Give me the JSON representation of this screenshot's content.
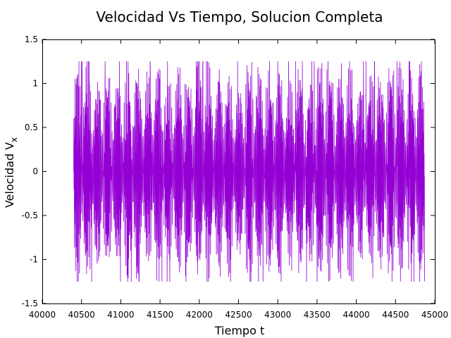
{
  "chart_data": {
    "type": "line",
    "title": "Velocidad Vs Tiempo, Solucion Completa",
    "xlabel": "Tiempo t",
    "ylabel_main": "Velocidad V",
    "ylabel_sub": "x",
    "xlim": [
      40000,
      45000
    ],
    "ylim": [
      -1.5,
      1.5
    ],
    "xticks": [
      "40000",
      "40500",
      "41000",
      "41500",
      "42000",
      "42500",
      "43000",
      "43500",
      "44000",
      "44500",
      "45000"
    ],
    "yticks": [
      "-1.5",
      "-1",
      "-0.5",
      "0",
      "0.5",
      "1",
      "1.5"
    ],
    "x_range": [
      40400,
      44870
    ],
    "amplitude_range": [
      0.55,
      1.25
    ],
    "grid": false,
    "legend": "none",
    "series": [
      {
        "color": "#9400d3"
      }
    ]
  }
}
